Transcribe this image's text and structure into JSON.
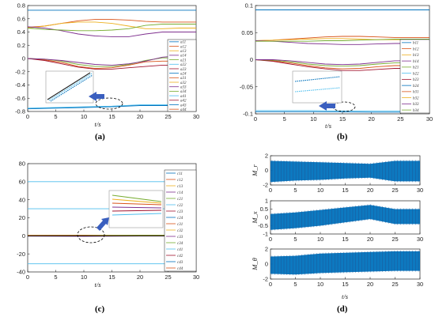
{
  "captions": {
    "a": "(a)",
    "b": "(b)",
    "c": "(c)",
    "d": "(d)"
  },
  "chart_data": [
    {
      "id": "a",
      "type": "line",
      "xlabel": "t/s",
      "ylabel": "",
      "xlim": [
        0,
        30
      ],
      "ylim": [
        -0.8,
        0.8
      ],
      "xticks": [
        0,
        5,
        10,
        15,
        20,
        25,
        30
      ],
      "yticks": [
        -0.8,
        -0.6,
        -0.4,
        -0.2,
        0,
        0.2,
        0.4,
        0.6,
        0.8
      ],
      "ytick_labels": [
        "-0.8",
        "-0.6",
        "-0.4",
        "-0.2",
        "0",
        "0.2",
        "0.4",
        "0.6",
        "0.8"
      ],
      "legend": {
        "position": "right",
        "entries": [
          "a11",
          "a12",
          "a13",
          "a14",
          "a21",
          "a22",
          "a23",
          "a24",
          "a31",
          "a32",
          "a33",
          "a34",
          "a41",
          "a42",
          "a43",
          "a44"
        ]
      },
      "series": [
        {
          "color": "#0072BD",
          "x": [
            0,
            30
          ],
          "y": [
            0.73,
            0.73
          ]
        },
        {
          "color": "#D95319",
          "x": [
            0,
            3,
            6,
            9,
            12,
            15,
            18,
            21,
            24,
            27,
            30
          ],
          "y": [
            0.47,
            0.49,
            0.53,
            0.57,
            0.59,
            0.59,
            0.58,
            0.56,
            0.55,
            0.55,
            0.55
          ]
        },
        {
          "color": "#EDB120",
          "x": [
            0,
            3,
            6,
            9,
            12,
            15,
            18,
            21,
            24,
            27,
            30
          ],
          "y": [
            0.46,
            0.49,
            0.53,
            0.55,
            0.55,
            0.53,
            0.49,
            0.45,
            0.45,
            0.46,
            0.46
          ]
        },
        {
          "color": "#7E2F8E",
          "x": [
            0,
            3,
            6,
            9,
            12,
            15,
            18,
            21,
            24,
            27,
            30
          ],
          "y": [
            0.48,
            0.46,
            0.42,
            0.37,
            0.34,
            0.33,
            0.33,
            0.37,
            0.4,
            0.4,
            0.4
          ]
        },
        {
          "color": "#77AC30",
          "x": [
            0,
            3,
            6,
            9,
            12,
            15,
            18,
            21,
            24,
            27,
            30
          ],
          "y": [
            0.46,
            0.44,
            0.43,
            0.42,
            0.42,
            0.43,
            0.45,
            0.5,
            0.52,
            0.52,
            0.52
          ]
        },
        {
          "color": "#D95319",
          "x": [
            0,
            3,
            6,
            9,
            12,
            15,
            18,
            21,
            24,
            27,
            30
          ],
          "y": [
            0.0,
            -0.02,
            -0.06,
            -0.12,
            -0.15,
            -0.14,
            -0.1,
            -0.05,
            -0.04,
            -0.04,
            -0.04
          ]
        },
        {
          "color": "#A2142F",
          "x": [
            0,
            3,
            6,
            9,
            12,
            15,
            18,
            21,
            24,
            27,
            30
          ],
          "y": [
            0.0,
            -0.03,
            -0.08,
            -0.13,
            -0.16,
            -0.16,
            -0.14,
            -0.12,
            -0.1,
            -0.1,
            -0.1
          ]
        },
        {
          "color": "#77AC30",
          "x": [
            0,
            3,
            6,
            9,
            12,
            15,
            18,
            21,
            24,
            27,
            30
          ],
          "y": [
            0.0,
            -0.01,
            -0.04,
            -0.09,
            -0.12,
            -0.12,
            -0.09,
            -0.03,
            0.01,
            0.01,
            0.01
          ]
        },
        {
          "color": "#7E2F8E",
          "x": [
            0,
            3,
            6,
            9,
            12,
            15,
            18,
            21,
            24,
            27,
            30
          ],
          "y": [
            0.0,
            -0.01,
            -0.03,
            -0.06,
            -0.09,
            -0.1,
            -0.08,
            -0.04,
            0.02,
            0.04,
            0.04
          ]
        },
        {
          "color": "#4DBEEE",
          "x": [
            0,
            5,
            10,
            15,
            20,
            25,
            30
          ],
          "y": [
            -0.75,
            -0.74,
            -0.73,
            -0.72,
            -0.7,
            -0.7,
            -0.7
          ]
        },
        {
          "color": "#0072BD",
          "x": [
            0,
            5,
            10,
            15,
            20,
            25,
            30
          ],
          "y": [
            -0.76,
            -0.75,
            -0.74,
            -0.73,
            -0.71,
            -0.71,
            -0.71
          ]
        }
      ]
    },
    {
      "id": "b",
      "type": "line",
      "xlabel": "t/s",
      "ylabel": "",
      "xlim": [
        0,
        30
      ],
      "ylim": [
        -0.1,
        0.1
      ],
      "xticks": [
        0,
        5,
        10,
        15,
        20,
        25,
        30
      ],
      "yticks": [
        -0.1,
        -0.05,
        0,
        0.05,
        0.1
      ],
      "ytick_labels": [
        "-0.1",
        "-0.05",
        "0",
        "0.05",
        "0.1"
      ],
      "legend": {
        "position": "right",
        "entries": [
          "b11",
          "b12",
          "b13",
          "b14",
          "b21",
          "b22",
          "b23",
          "b24",
          "b31",
          "b32",
          "b33",
          "b34"
        ]
      },
      "series": [
        {
          "color": "#0072BD",
          "x": [
            0,
            30
          ],
          "y": [
            0.092,
            0.092
          ]
        },
        {
          "color": "#D95319",
          "x": [
            0,
            3,
            6,
            9,
            12,
            15,
            18,
            21,
            24,
            27,
            30
          ],
          "y": [
            0.035,
            0.036,
            0.038,
            0.04,
            0.042,
            0.043,
            0.043,
            0.042,
            0.041,
            0.041,
            0.041
          ]
        },
        {
          "color": "#EDB120",
          "x": [
            0,
            3,
            6,
            9,
            12,
            15,
            18,
            21,
            24,
            27,
            30
          ],
          "y": [
            0.035,
            0.036,
            0.037,
            0.038,
            0.039,
            0.039,
            0.038,
            0.037,
            0.037,
            0.037,
            0.037
          ]
        },
        {
          "color": "#7E2F8E",
          "x": [
            0,
            3,
            6,
            9,
            12,
            15,
            18,
            21,
            24,
            27,
            30
          ],
          "y": [
            0.035,
            0.034,
            0.032,
            0.03,
            0.029,
            0.028,
            0.028,
            0.029,
            0.03,
            0.03,
            0.03
          ]
        },
        {
          "color": "#77AC30",
          "x": [
            0,
            3,
            6,
            9,
            12,
            15,
            18,
            21,
            24,
            27,
            30
          ],
          "y": [
            0.034,
            0.034,
            0.034,
            0.034,
            0.035,
            0.035,
            0.036,
            0.037,
            0.038,
            0.038,
            0.038
          ]
        },
        {
          "color": "#D95319",
          "x": [
            0,
            3,
            6,
            9,
            12,
            15,
            18,
            21,
            24,
            27,
            30
          ],
          "y": [
            0.0,
            -0.002,
            -0.006,
            -0.011,
            -0.015,
            -0.017,
            -0.016,
            -0.013,
            -0.011,
            -0.011,
            -0.011
          ]
        },
        {
          "color": "#A2142F",
          "x": [
            0,
            3,
            6,
            9,
            12,
            15,
            18,
            21,
            24,
            27,
            30
          ],
          "y": [
            0.0,
            -0.003,
            -0.008,
            -0.013,
            -0.017,
            -0.02,
            -0.02,
            -0.018,
            -0.016,
            -0.016,
            -0.016
          ]
        },
        {
          "color": "#77AC30",
          "x": [
            0,
            3,
            6,
            9,
            12,
            15,
            18,
            21,
            24,
            27,
            30
          ],
          "y": [
            0.0,
            -0.001,
            -0.004,
            -0.008,
            -0.011,
            -0.012,
            -0.011,
            -0.008,
            -0.006,
            -0.006,
            -0.006
          ]
        },
        {
          "color": "#7E2F8E",
          "x": [
            0,
            3,
            6,
            9,
            12,
            15,
            18,
            21,
            24,
            27,
            30
          ],
          "y": [
            0.0,
            0.0,
            -0.002,
            -0.005,
            -0.008,
            -0.009,
            -0.008,
            -0.005,
            -0.002,
            -0.002,
            -0.002
          ]
        },
        {
          "color": "#4DBEEE",
          "x": [
            0,
            10,
            20,
            30
          ],
          "y": [
            -0.094,
            -0.094,
            -0.095,
            -0.095
          ]
        },
        {
          "color": "#0072BD",
          "x": [
            0,
            10,
            20,
            30
          ],
          "y": [
            -0.096,
            -0.096,
            -0.097,
            -0.097
          ]
        }
      ]
    },
    {
      "id": "c",
      "type": "line",
      "xlabel": "t/s",
      "ylabel": "",
      "xlim": [
        0,
        30
      ],
      "ylim": [
        -40,
        80
      ],
      "xticks": [
        0,
        5,
        10,
        15,
        20,
        25,
        30
      ],
      "yticks": [
        -40,
        -20,
        0,
        20,
        40,
        60,
        80
      ],
      "ytick_labels": [
        "-40",
        "-20",
        "0",
        "20",
        "40",
        "60",
        "80"
      ],
      "legend": {
        "position": "right",
        "entries": [
          "c11",
          "c12",
          "c13",
          "c14",
          "c21",
          "c22",
          "c23",
          "c24",
          "c31",
          "c32",
          "c33",
          "c34",
          "c41",
          "c42",
          "c43",
          "c44"
        ]
      },
      "series": [
        {
          "color": "#4DBEEE",
          "x": [
            0,
            30
          ],
          "y": [
            60,
            60
          ]
        },
        {
          "color": "#4DBEEE",
          "x": [
            0,
            30
          ],
          "y": [
            30,
            30
          ]
        },
        {
          "color": "#4DBEEE",
          "x": [
            0,
            30
          ],
          "y": [
            -31,
            -31
          ]
        },
        {
          "color": "#D95319",
          "x": [
            0,
            10,
            20,
            30
          ],
          "y": [
            0.6,
            0.8,
            0.5,
            0.5
          ]
        },
        {
          "color": "#77AC30",
          "x": [
            0,
            10,
            20,
            30
          ],
          "y": [
            0.3,
            0.5,
            0.8,
            0.8
          ]
        },
        {
          "color": "#7E2F8E",
          "x": [
            0,
            10,
            20,
            30
          ],
          "y": [
            -0.3,
            -0.5,
            -0.2,
            -0.2
          ]
        },
        {
          "color": "#EDB120",
          "x": [
            0,
            10,
            20,
            30
          ],
          "y": [
            0.1,
            0.2,
            0.1,
            0.1
          ]
        },
        {
          "color": "#000000",
          "x": [
            0,
            30
          ],
          "y": [
            0,
            0
          ]
        }
      ]
    },
    {
      "id": "d",
      "type": "line",
      "xlabel": "t/s",
      "subplots": [
        {
          "ylabel": "M_r",
          "ylim": [
            -2,
            2
          ],
          "yticks": [
            -2,
            0,
            2
          ],
          "xlim": [
            0,
            30
          ],
          "xticks": [
            0,
            5,
            10,
            15,
            20,
            25,
            30
          ],
          "series": [
            {
              "color": "#0072BD",
              "signal": "oscillation",
              "x": [
                0,
                5,
                10,
                15,
                20,
                25,
                30
              ],
              "upper": [
                1.3,
                1.2,
                1.1,
                1.0,
                0.9,
                1.3,
                1.3
              ],
              "lower": [
                -1.6,
                -1.4,
                -1.3,
                -1.1,
                -1.0,
                -1.5,
                -1.5
              ]
            }
          ]
        },
        {
          "ylabel": "M_x",
          "ylim": [
            -1,
            1
          ],
          "yticks": [
            -1,
            -0.5,
            0,
            0.5,
            1
          ],
          "ytick_labels": [
            "-1",
            "-0.5",
            "0",
            "0.5",
            "1"
          ],
          "xlim": [
            0,
            30
          ],
          "xticks": [
            0,
            5,
            10,
            15,
            20,
            25,
            30
          ],
          "series": [
            {
              "color": "#0072BD",
              "signal": "oscillation",
              "x": [
                0,
                5,
                10,
                15,
                20,
                25,
                30
              ],
              "upper": [
                0.2,
                0.3,
                0.45,
                0.6,
                0.75,
                0.5,
                0.5
              ],
              "lower": [
                -0.75,
                -0.65,
                -0.5,
                -0.3,
                -0.1,
                -0.4,
                -0.4
              ]
            }
          ]
        },
        {
          "ylabel": "M_θ",
          "ylim": [
            -2,
            2
          ],
          "yticks": [
            -2,
            0,
            2
          ],
          "xlim": [
            0,
            30
          ],
          "xticks": [
            0,
            5,
            10,
            15,
            20,
            25,
            30
          ],
          "series": [
            {
              "color": "#0072BD",
              "signal": "oscillation",
              "x": [
                0,
                5,
                10,
                15,
                20,
                25,
                30
              ],
              "upper": [
                1.0,
                1.1,
                1.4,
                1.5,
                1.6,
                1.7,
                1.7
              ],
              "lower": [
                -1.3,
                -1.4,
                -1.2,
                -1.1,
                -1.0,
                -0.9,
                -0.9
              ]
            }
          ]
        }
      ]
    }
  ]
}
